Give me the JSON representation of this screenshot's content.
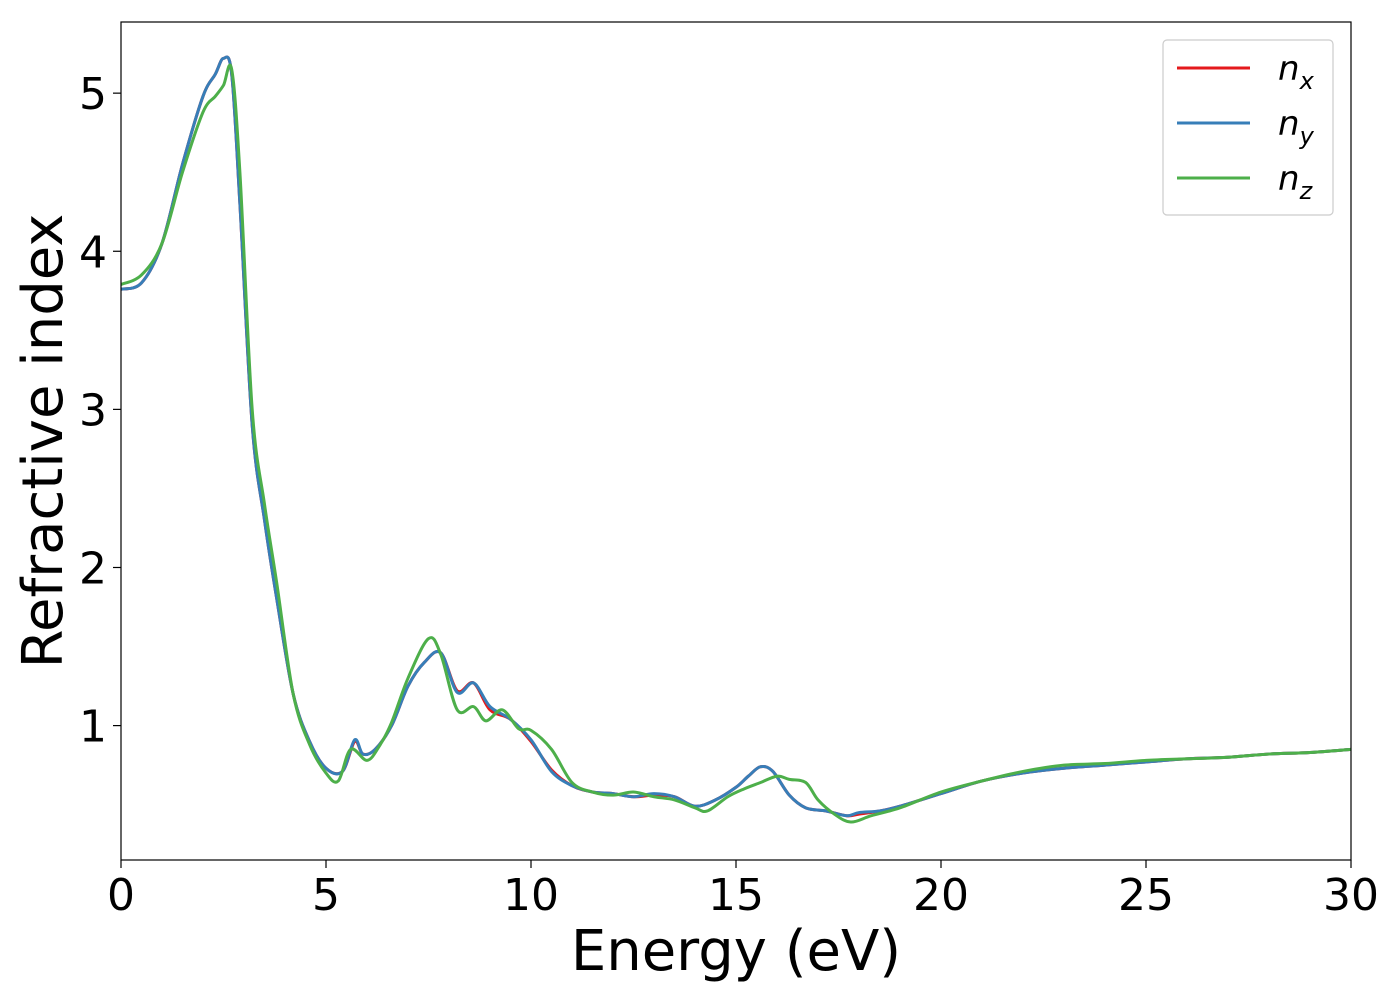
{
  "chart_data": {
    "type": "line",
    "xlabel": "Energy (eV)",
    "ylabel": "Refractive index",
    "xlim": [
      0,
      30
    ],
    "ylim": [
      0.15,
      5.45
    ],
    "xticks": [
      0,
      5,
      10,
      15,
      20,
      25,
      30
    ],
    "yticks": [
      1,
      2,
      3,
      4,
      5
    ],
    "grid": false,
    "legend_position": "top-right",
    "series": [
      {
        "name": "n_x",
        "label_main": "n",
        "label_sub": "x",
        "color": "#e41a1c",
        "x": [
          0,
          0.5,
          1.0,
          1.5,
          2.0,
          2.3,
          2.5,
          2.7,
          2.9,
          3.2,
          3.5,
          3.8,
          4.2,
          4.6,
          5.0,
          5.4,
          5.7,
          5.9,
          6.2,
          6.6,
          7.0,
          7.4,
          7.8,
          8.2,
          8.6,
          9.0,
          9.5,
          10.0,
          10.5,
          11.0,
          11.5,
          12.0,
          12.5,
          13.0,
          13.5,
          14.0,
          14.5,
          15.0,
          15.3,
          15.6,
          15.9,
          16.3,
          16.7,
          17.2,
          17.7,
          18.0,
          18.5,
          19.0,
          20.0,
          21.0,
          22.0,
          23.0,
          24.0,
          25.0,
          26.0,
          27.0,
          28.0,
          29.0,
          30.0
        ],
        "y": [
          3.76,
          3.8,
          4.05,
          4.55,
          4.98,
          5.12,
          5.22,
          5.12,
          4.3,
          2.9,
          2.3,
          1.8,
          1.2,
          0.9,
          0.73,
          0.71,
          0.9,
          0.82,
          0.85,
          1.0,
          1.25,
          1.4,
          1.46,
          1.22,
          1.27,
          1.1,
          1.04,
          0.9,
          0.72,
          0.62,
          0.58,
          0.57,
          0.55,
          0.56,
          0.55,
          0.49,
          0.53,
          0.61,
          0.68,
          0.74,
          0.71,
          0.56,
          0.48,
          0.46,
          0.43,
          0.44,
          0.46,
          0.49,
          0.57,
          0.65,
          0.7,
          0.73,
          0.75,
          0.77,
          0.79,
          0.8,
          0.82,
          0.83,
          0.85
        ]
      },
      {
        "name": "n_y",
        "label_main": "n",
        "label_sub": "y",
        "color": "#377eb8",
        "x": [
          0,
          0.5,
          1.0,
          1.5,
          2.0,
          2.3,
          2.5,
          2.7,
          2.9,
          3.2,
          3.5,
          3.8,
          4.2,
          4.6,
          5.0,
          5.4,
          5.7,
          5.9,
          6.2,
          6.6,
          7.0,
          7.4,
          7.8,
          8.2,
          8.6,
          9.0,
          9.5,
          10.0,
          10.5,
          11.0,
          11.5,
          12.0,
          12.5,
          13.0,
          13.5,
          14.0,
          14.5,
          15.0,
          15.3,
          15.6,
          15.9,
          16.3,
          16.7,
          17.2,
          17.7,
          18.0,
          18.5,
          19.0,
          20.0,
          21.0,
          22.0,
          23.0,
          24.0,
          25.0,
          26.0,
          27.0,
          28.0,
          29.0,
          30.0
        ],
        "y": [
          3.76,
          3.8,
          4.05,
          4.55,
          4.98,
          5.12,
          5.22,
          5.12,
          4.3,
          2.9,
          2.3,
          1.8,
          1.2,
          0.9,
          0.73,
          0.71,
          0.91,
          0.82,
          0.85,
          1.0,
          1.25,
          1.4,
          1.46,
          1.21,
          1.27,
          1.12,
          1.04,
          0.91,
          0.71,
          0.62,
          0.58,
          0.57,
          0.55,
          0.57,
          0.55,
          0.49,
          0.53,
          0.61,
          0.68,
          0.74,
          0.71,
          0.56,
          0.48,
          0.46,
          0.43,
          0.45,
          0.46,
          0.49,
          0.57,
          0.65,
          0.7,
          0.73,
          0.75,
          0.77,
          0.79,
          0.8,
          0.82,
          0.83,
          0.85
        ]
      },
      {
        "name": "n_z",
        "label_main": "n",
        "label_sub": "z",
        "color": "#4daf4a",
        "x": [
          0,
          0.5,
          1.0,
          1.5,
          2.0,
          2.3,
          2.5,
          2.7,
          2.9,
          3.2,
          3.5,
          3.8,
          4.2,
          4.6,
          5.0,
          5.3,
          5.6,
          6.0,
          6.3,
          6.6,
          7.0,
          7.5,
          7.8,
          8.2,
          8.6,
          8.9,
          9.3,
          9.7,
          10.0,
          10.5,
          11.0,
          11.5,
          12.0,
          12.5,
          13.0,
          13.5,
          14.0,
          14.3,
          14.8,
          15.2,
          15.6,
          16.0,
          16.3,
          16.7,
          17.0,
          17.4,
          17.8,
          18.3,
          19.0,
          20.0,
          21.0,
          22.0,
          23.0,
          24.0,
          25.0,
          26.0,
          27.0,
          28.0,
          29.0,
          30.0
        ],
        "y": [
          3.79,
          3.85,
          4.05,
          4.5,
          4.88,
          4.98,
          5.05,
          5.15,
          4.5,
          3.0,
          2.4,
          1.9,
          1.2,
          0.88,
          0.7,
          0.65,
          0.85,
          0.78,
          0.87,
          1.02,
          1.3,
          1.55,
          1.45,
          1.1,
          1.12,
          1.03,
          1.1,
          0.98,
          0.97,
          0.85,
          0.64,
          0.58,
          0.56,
          0.58,
          0.55,
          0.53,
          0.48,
          0.46,
          0.55,
          0.6,
          0.64,
          0.68,
          0.66,
          0.64,
          0.53,
          0.44,
          0.39,
          0.43,
          0.48,
          0.58,
          0.65,
          0.71,
          0.75,
          0.76,
          0.78,
          0.79,
          0.8,
          0.82,
          0.83,
          0.85
        ]
      }
    ]
  }
}
